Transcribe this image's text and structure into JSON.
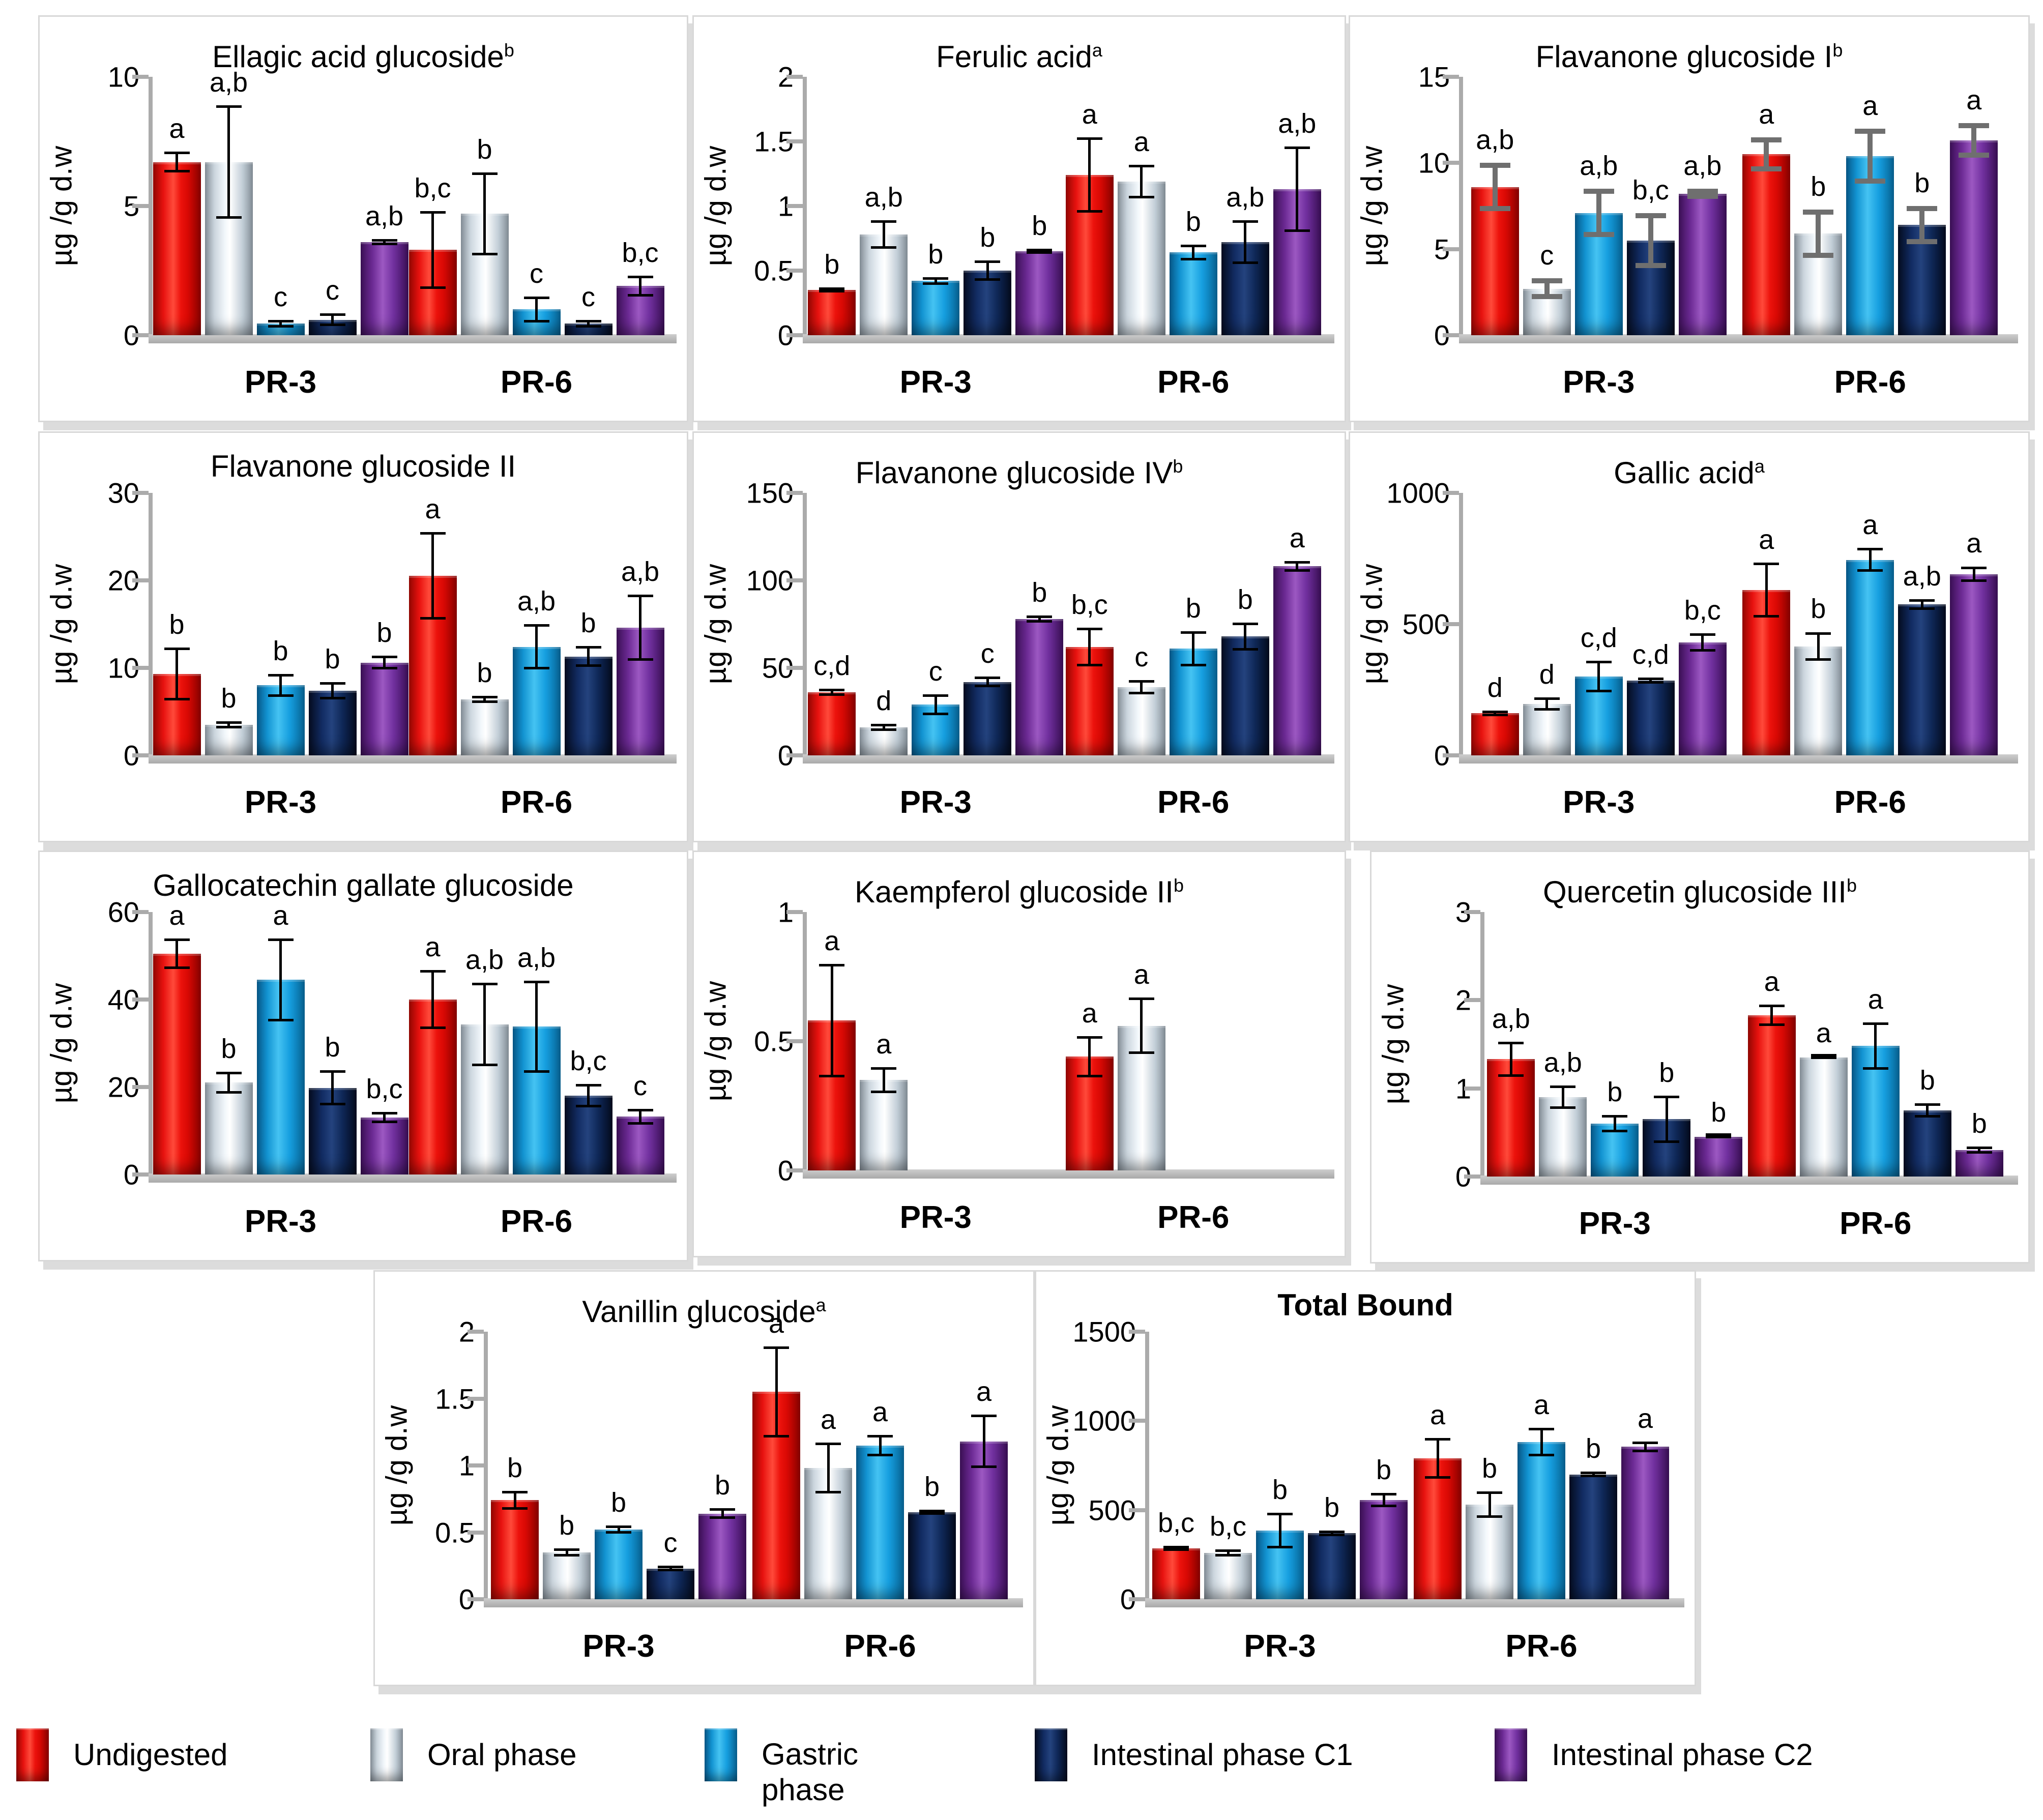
{
  "figure": {
    "ylabel": "µg /g d.w",
    "group_labels": [
      "PR-3",
      "PR-6"
    ],
    "legend": [
      {
        "label": "Undigested",
        "color": "#e81310"
      },
      {
        "label": "Oral phase",
        "color": "#ccd6de"
      },
      {
        "label": "Gastric phase",
        "color": "#169fe0"
      },
      {
        "label": "Intestinal phase C1",
        "color": "#122c63"
      },
      {
        "label": "Intestinal phase C2",
        "color": "#7231a0"
      }
    ]
  },
  "chart_data": [
    {
      "type": "bar",
      "title": "Ellagic acid glucoside",
      "sup": "b",
      "title_bold": false,
      "ylabel": "µg /g d.w",
      "ylim": [
        0,
        10
      ],
      "yticks": [
        0,
        5,
        10
      ],
      "err_color": "#000000",
      "err_thick": false,
      "categories": [
        "PR-3",
        "PR-6"
      ],
      "series": [
        {
          "name": "Undigested",
          "values": [
            6.7,
            3.3
          ],
          "errors": [
            0.4,
            1.5
          ],
          "letters": [
            "a",
            "b,c"
          ]
        },
        {
          "name": "Oral phase",
          "values": [
            6.7,
            4.7
          ],
          "errors": [
            2.2,
            1.6
          ],
          "letters": [
            "a,b",
            "b"
          ]
        },
        {
          "name": "Gastric phase",
          "values": [
            0.45,
            1.0
          ],
          "errors": [
            0.15,
            0.5
          ],
          "letters": [
            "c",
            "c"
          ]
        },
        {
          "name": "Intestinal phase C1",
          "values": [
            0.6,
            0.45
          ],
          "errors": [
            0.25,
            0.15
          ],
          "letters": [
            "c",
            "c"
          ]
        },
        {
          "name": "Intestinal phase C2",
          "values": [
            3.6,
            1.9
          ],
          "errors": [
            0.12,
            0.4
          ],
          "letters": [
            "a,b",
            "b,c"
          ]
        }
      ]
    },
    {
      "type": "bar",
      "title": "Ferulic acid",
      "sup": "a",
      "title_bold": false,
      "ylabel": "µg /g d.w",
      "ylim": [
        0,
        2
      ],
      "yticks": [
        0,
        0.5,
        1,
        1.5,
        2
      ],
      "err_color": "#000000",
      "err_thick": false,
      "categories": [
        "PR-3",
        "PR-6"
      ],
      "series": [
        {
          "name": "Undigested",
          "values": [
            0.35,
            1.24
          ],
          "errors": [
            0.02,
            0.29
          ],
          "letters": [
            "b",
            "a"
          ]
        },
        {
          "name": "Oral phase",
          "values": [
            0.78,
            1.19
          ],
          "errors": [
            0.11,
            0.13
          ],
          "letters": [
            "a,b",
            "a"
          ]
        },
        {
          "name": "Gastric phase",
          "values": [
            0.42,
            0.64
          ],
          "errors": [
            0.03,
            0.06
          ],
          "letters": [
            "b",
            "b"
          ]
        },
        {
          "name": "Intestinal phase C1",
          "values": [
            0.5,
            0.72
          ],
          "errors": [
            0.08,
            0.17
          ],
          "letters": [
            "b",
            "a,b"
          ]
        },
        {
          "name": "Intestinal phase C2",
          "values": [
            0.65,
            1.13
          ],
          "errors": [
            0.02,
            0.33
          ],
          "letters": [
            "b",
            "a,b"
          ]
        }
      ]
    },
    {
      "type": "bar",
      "title": "Flavanone glucoside I",
      "sup": "b",
      "title_bold": false,
      "ylabel": "µg /g d.w",
      "ylim": [
        0,
        15
      ],
      "yticks": [
        0,
        5,
        10,
        15
      ],
      "err_color": "#6f6f6f",
      "err_thick": true,
      "categories": [
        "PR-3",
        "PR-6"
      ],
      "series": [
        {
          "name": "Undigested",
          "values": [
            8.6,
            10.5
          ],
          "errors": [
            1.4,
            1.0
          ],
          "letters": [
            "a,b",
            "a"
          ]
        },
        {
          "name": "Oral phase",
          "values": [
            2.7,
            5.9
          ],
          "errors": [
            0.6,
            1.4
          ],
          "letters": [
            "c",
            "b"
          ]
        },
        {
          "name": "Gastric phase",
          "values": [
            7.1,
            10.4
          ],
          "errors": [
            1.4,
            1.6
          ],
          "letters": [
            "a,b",
            "a"
          ]
        },
        {
          "name": "Intestinal phase C1",
          "values": [
            5.5,
            6.4
          ],
          "errors": [
            1.6,
            1.1
          ],
          "letters": [
            "b,c",
            "b"
          ]
        },
        {
          "name": "Intestinal phase C2",
          "values": [
            8.2,
            11.3
          ],
          "errors": [
            0.3,
            1.0
          ],
          "letters": [
            "a,b",
            "a"
          ]
        }
      ]
    },
    {
      "type": "bar",
      "title": "Flavanone glucoside II",
      "sup": "",
      "title_bold": false,
      "ylabel": "µg /g d.w",
      "ylim": [
        0,
        30
      ],
      "yticks": [
        0,
        10,
        20,
        30
      ],
      "err_color": "#000000",
      "err_thick": false,
      "categories": [
        "PR-3",
        "PR-6"
      ],
      "series": [
        {
          "name": "Undigested",
          "values": [
            9.3,
            20.5
          ],
          "errors": [
            3.0,
            5.0
          ],
          "letters": [
            "b",
            "a"
          ]
        },
        {
          "name": "Oral phase",
          "values": [
            3.5,
            6.4
          ],
          "errors": [
            0.4,
            0.4
          ],
          "letters": [
            "b",
            "b"
          ]
        },
        {
          "name": "Gastric phase",
          "values": [
            8.0,
            12.4
          ],
          "errors": [
            1.3,
            2.6
          ],
          "letters": [
            "b",
            "a,b"
          ]
        },
        {
          "name": "Intestinal phase C1",
          "values": [
            7.4,
            11.3
          ],
          "errors": [
            1.0,
            1.2
          ],
          "letters": [
            "b",
            "b"
          ]
        },
        {
          "name": "Intestinal phase C2",
          "values": [
            10.6,
            14.6
          ],
          "errors": [
            0.8,
            3.8
          ],
          "letters": [
            "b",
            "a,b"
          ]
        }
      ]
    },
    {
      "type": "bar",
      "title": "Flavanone glucoside IV",
      "sup": "b",
      "title_bold": false,
      "ylabel": "µg /g d.w",
      "ylim": [
        0,
        150
      ],
      "yticks": [
        0,
        50,
        100,
        150
      ],
      "err_color": "#000000",
      "err_thick": false,
      "categories": [
        "PR-3",
        "PR-6"
      ],
      "series": [
        {
          "name": "Undigested",
          "values": [
            36,
            62
          ],
          "errors": [
            2,
            11
          ],
          "letters": [
            "c,d",
            "b,c"
          ]
        },
        {
          "name": "Oral phase",
          "values": [
            16,
            39
          ],
          "errors": [
            2,
            4
          ],
          "letters": [
            "d",
            "c"
          ]
        },
        {
          "name": "Gastric phase",
          "values": [
            29,
            61
          ],
          "errors": [
            6,
            10
          ],
          "letters": [
            "c",
            "b"
          ]
        },
        {
          "name": "Intestinal phase C1",
          "values": [
            42,
            68
          ],
          "errors": [
            3,
            8
          ],
          "letters": [
            "c",
            "b"
          ]
        },
        {
          "name": "Intestinal phase C2",
          "values": [
            78,
            108
          ],
          "errors": [
            2,
            3
          ],
          "letters": [
            "b",
            "a"
          ]
        }
      ]
    },
    {
      "type": "bar",
      "title": "Gallic acid",
      "sup": "a",
      "title_bold": false,
      "ylabel": "µg /g d.w",
      "ylim": [
        0,
        1000
      ],
      "yticks": [
        0,
        500,
        1000
      ],
      "err_color": "#000000",
      "err_thick": false,
      "categories": [
        "PR-3",
        "PR-6"
      ],
      "series": [
        {
          "name": "Undigested",
          "values": [
            160,
            630
          ],
          "errors": [
            10,
            105
          ],
          "letters": [
            "d",
            "a"
          ]
        },
        {
          "name": "Oral phase",
          "values": [
            195,
            415
          ],
          "errors": [
            25,
            55
          ],
          "letters": [
            "d",
            "b"
          ]
        },
        {
          "name": "Gastric phase",
          "values": [
            300,
            745
          ],
          "errors": [
            60,
            45
          ],
          "letters": [
            "c,d",
            "a"
          ]
        },
        {
          "name": "Intestinal phase C1",
          "values": [
            285,
            575
          ],
          "errors": [
            12,
            20
          ],
          "letters": [
            "c,d",
            "a,b"
          ]
        },
        {
          "name": "Intestinal phase C2",
          "values": [
            430,
            690
          ],
          "errors": [
            35,
            30
          ],
          "letters": [
            "b,c",
            "a"
          ]
        }
      ]
    },
    {
      "type": "bar",
      "title": "Gallocatechin gallate glucoside",
      "sup": "",
      "title_bold": false,
      "ylabel": "µg /g d.w",
      "ylim": [
        0,
        60
      ],
      "yticks": [
        0,
        20,
        40,
        60
      ],
      "err_color": "#000000",
      "err_thick": false,
      "categories": [
        "PR-3",
        "PR-6"
      ],
      "series": [
        {
          "name": "Undigested",
          "values": [
            50.5,
            40
          ],
          "errors": [
            3.5,
            6.8
          ],
          "letters": [
            "a",
            "a"
          ]
        },
        {
          "name": "Oral phase",
          "values": [
            21,
            34.3
          ],
          "errors": [
            2.5,
            9.5
          ],
          "letters": [
            "b",
            "a,b"
          ]
        },
        {
          "name": "Gastric phase",
          "values": [
            44.5,
            33.8
          ],
          "errors": [
            9.5,
            10.5
          ],
          "letters": [
            "a",
            "a,b"
          ]
        },
        {
          "name": "Intestinal phase C1",
          "values": [
            19.8,
            18
          ],
          "errors": [
            4.0,
            2.7
          ],
          "letters": [
            "b",
            "b,c"
          ]
        },
        {
          "name": "Intestinal phase C2",
          "values": [
            13,
            13.2
          ],
          "errors": [
            1.3,
            1.8
          ],
          "letters": [
            "b,c",
            "c"
          ]
        }
      ]
    },
    {
      "type": "bar",
      "title": "Kaempferol glucoside II",
      "sup": "b",
      "title_bold": false,
      "ylabel": "µg /g d.w",
      "ylim": [
        0,
        1
      ],
      "yticks": [
        0,
        0.5,
        1
      ],
      "err_color": "#000000",
      "err_thick": false,
      "categories": [
        "PR-3",
        "PR-6"
      ],
      "series": [
        {
          "name": "Undigested",
          "values": [
            0.58,
            0.44
          ],
          "errors": [
            0.22,
            0.08
          ],
          "letters": [
            "a",
            "a"
          ]
        },
        {
          "name": "Oral phase",
          "values": [
            0.35,
            0.56
          ],
          "errors": [
            0.05,
            0.11
          ],
          "letters": [
            "a",
            "a"
          ]
        },
        {
          "name": "Gastric phase",
          "values": [
            0,
            0
          ],
          "errors": [
            0,
            0
          ],
          "letters": [
            "",
            ""
          ]
        },
        {
          "name": "Intestinal phase C1",
          "values": [
            0,
            0
          ],
          "errors": [
            0,
            0
          ],
          "letters": [
            "",
            ""
          ]
        },
        {
          "name": "Intestinal phase C2",
          "values": [
            0,
            0
          ],
          "errors": [
            0,
            0
          ],
          "letters": [
            "",
            ""
          ]
        }
      ]
    },
    {
      "type": "bar",
      "title": "Quercetin glucoside III",
      "sup": "b",
      "title_bold": false,
      "ylabel": "µg /g d.w",
      "ylim": [
        0,
        3
      ],
      "yticks": [
        0,
        1,
        2,
        3
      ],
      "err_color": "#000000",
      "err_thick": false,
      "categories": [
        "PR-3",
        "PR-6"
      ],
      "series": [
        {
          "name": "Undigested",
          "values": [
            1.33,
            1.83
          ],
          "errors": [
            0.2,
            0.12
          ],
          "letters": [
            "a,b",
            "a"
          ]
        },
        {
          "name": "Oral phase",
          "values": [
            0.9,
            1.35
          ],
          "errors": [
            0.13,
            0.02
          ],
          "letters": [
            "a,b",
            "a"
          ]
        },
        {
          "name": "Gastric phase",
          "values": [
            0.6,
            1.48
          ],
          "errors": [
            0.1,
            0.27
          ],
          "letters": [
            "b",
            "a"
          ]
        },
        {
          "name": "Intestinal phase C1",
          "values": [
            0.65,
            0.75
          ],
          "errors": [
            0.27,
            0.08
          ],
          "letters": [
            "b",
            "b"
          ]
        },
        {
          "name": "Intestinal phase C2",
          "values": [
            0.45,
            0.3
          ],
          "errors": [
            0.02,
            0.04
          ],
          "letters": [
            "b",
            "b"
          ]
        }
      ]
    },
    {
      "type": "bar",
      "title": "Vanillin glucoside",
      "sup": "a",
      "title_bold": false,
      "ylabel": "µg /g d.w",
      "ylim": [
        0,
        2
      ],
      "yticks": [
        0,
        0.5,
        1,
        1.5,
        2
      ],
      "err_color": "#000000",
      "err_thick": false,
      "categories": [
        "PR-3",
        "PR-6"
      ],
      "series": [
        {
          "name": "Undigested",
          "values": [
            0.74,
            1.55
          ],
          "errors": [
            0.07,
            0.34
          ],
          "letters": [
            "b",
            "a"
          ]
        },
        {
          "name": "Oral phase",
          "values": [
            0.35,
            0.98
          ],
          "errors": [
            0.03,
            0.19
          ],
          "letters": [
            "b",
            "a"
          ]
        },
        {
          "name": "Gastric phase",
          "values": [
            0.52,
            1.15
          ],
          "errors": [
            0.03,
            0.08
          ],
          "letters": [
            "b",
            "a"
          ]
        },
        {
          "name": "Intestinal phase C1",
          "values": [
            0.23,
            0.65
          ],
          "errors": [
            0.02,
            0.02
          ],
          "letters": [
            "c",
            "b"
          ]
        },
        {
          "name": "Intestinal phase C2",
          "values": [
            0.64,
            1.18
          ],
          "errors": [
            0.04,
            0.2
          ],
          "letters": [
            "b",
            "a"
          ]
        }
      ]
    },
    {
      "type": "bar",
      "title": "Total Bound",
      "sup": "",
      "title_bold": true,
      "ylabel": "µg /g d.w",
      "ylim": [
        0,
        1500
      ],
      "yticks": [
        0,
        500,
        1000,
        1500
      ],
      "err_color": "#000000",
      "err_thick": false,
      "categories": [
        "PR-3",
        "PR-6"
      ],
      "series": [
        {
          "name": "Undigested",
          "values": [
            285,
            790
          ],
          "errors": [
            15,
            115
          ],
          "letters": [
            "b,c",
            "a"
          ]
        },
        {
          "name": "Oral phase",
          "values": [
            260,
            530
          ],
          "errors": [
            20,
            75
          ],
          "letters": [
            "b,c",
            "b"
          ]
        },
        {
          "name": "Gastric phase",
          "values": [
            385,
            880
          ],
          "errors": [
            100,
            80
          ],
          "letters": [
            "b",
            "a"
          ]
        },
        {
          "name": "Intestinal phase C1",
          "values": [
            370,
            700
          ],
          "errors": [
            15,
            15
          ],
          "letters": [
            "b",
            "b"
          ]
        },
        {
          "name": "Intestinal phase C2",
          "values": [
            555,
            855
          ],
          "errors": [
            40,
            30
          ],
          "letters": [
            "b",
            "a"
          ]
        }
      ]
    }
  ]
}
